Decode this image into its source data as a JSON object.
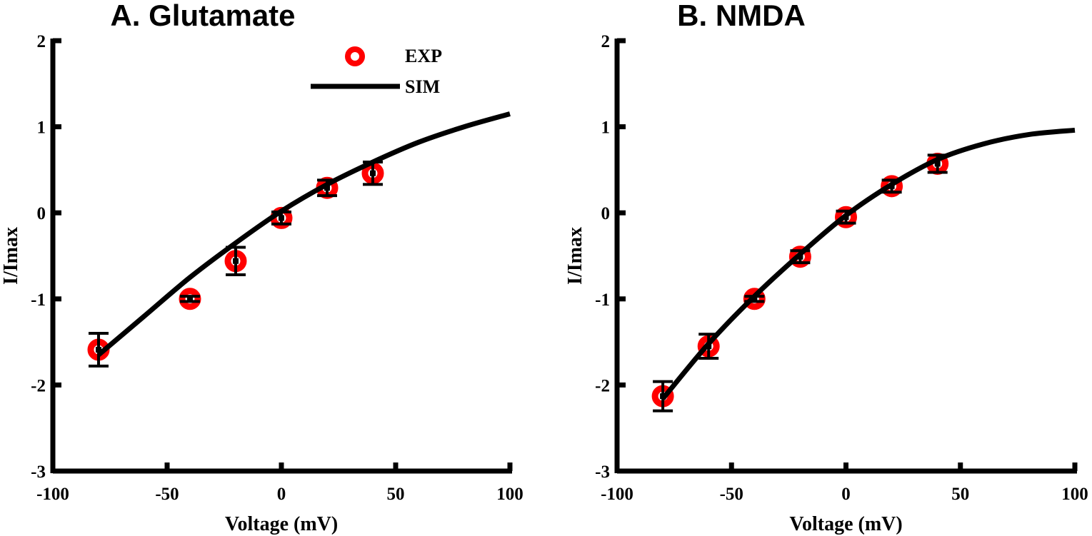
{
  "chart_data": [
    {
      "type": "line",
      "title": "A. Glutamate",
      "xlabel": "Voltage (mV)",
      "ylabel": "I/Imax",
      "xlim": [
        -100,
        100
      ],
      "ylim": [
        -3,
        2
      ],
      "xticks": [
        -100,
        -50,
        0,
        50,
        100
      ],
      "yticks": [
        -3,
        -2,
        -1,
        0,
        1,
        2
      ],
      "grid": false,
      "legend": {
        "placement": "top-right",
        "entries": [
          "EXP",
          "SIM"
        ]
      },
      "series": [
        {
          "name": "EXP",
          "kind": "scatter-errorbar",
          "color": "#ff0000",
          "x": [
            -80,
            -40,
            -20,
            0,
            20,
            40
          ],
          "y": [
            -1.59,
            -1.0,
            -0.56,
            -0.06,
            0.29,
            0.46
          ],
          "err": [
            0.19,
            0.03,
            0.16,
            0.07,
            0.09,
            0.13
          ]
        },
        {
          "name": "SIM",
          "kind": "line",
          "color": "#000000",
          "x": [
            -80,
            -60,
            -40,
            -20,
            0,
            20,
            40,
            60,
            80,
            100
          ],
          "y": [
            -1.65,
            -1.2,
            -0.75,
            -0.35,
            0.02,
            0.33,
            0.59,
            0.82,
            1.0,
            1.15
          ]
        }
      ]
    },
    {
      "type": "line",
      "title": "B. NMDA",
      "xlabel": "Voltage (mV)",
      "ylabel": "I/Imax",
      "xlim": [
        -100,
        100
      ],
      "ylim": [
        -3,
        2
      ],
      "xticks": [
        -100,
        -50,
        0,
        50,
        100
      ],
      "yticks": [
        -3,
        -2,
        -1,
        0,
        1,
        2
      ],
      "grid": false,
      "legend": null,
      "series": [
        {
          "name": "EXP",
          "kind": "scatter-errorbar",
          "color": "#ff0000",
          "x": [
            -80,
            -60,
            -40,
            -20,
            0,
            20,
            40
          ],
          "y": [
            -2.13,
            -1.55,
            -1.0,
            -0.51,
            -0.05,
            0.31,
            0.57
          ],
          "err": [
            0.17,
            0.14,
            0.03,
            0.07,
            0.07,
            0.07,
            0.1
          ]
        },
        {
          "name": "SIM",
          "kind": "line",
          "color": "#000000",
          "x": [
            -80,
            -60,
            -40,
            -20,
            0,
            20,
            40,
            60,
            80,
            100
          ],
          "y": [
            -2.16,
            -1.52,
            -0.97,
            -0.48,
            -0.03,
            0.33,
            0.62,
            0.8,
            0.91,
            0.96
          ]
        }
      ]
    }
  ]
}
